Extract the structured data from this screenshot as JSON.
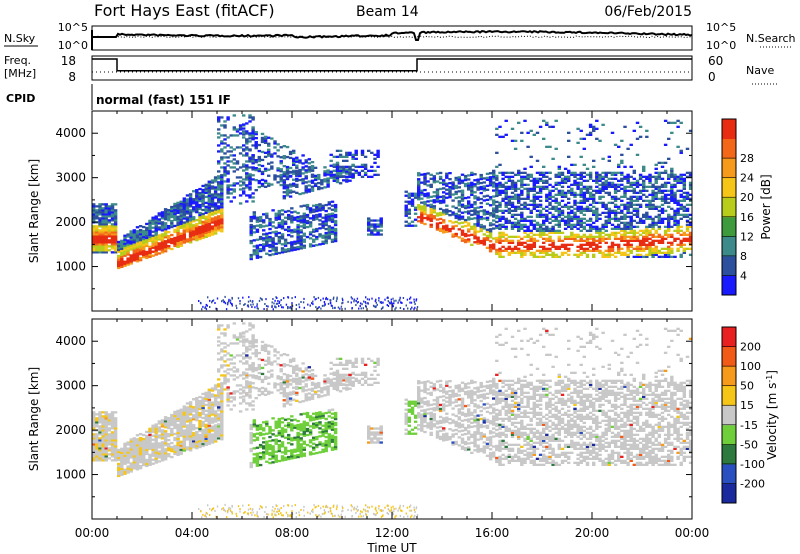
{
  "header": {
    "title": "Fort Hays East (fitACF)",
    "beam": "Beam 14",
    "date": "06/Feb/2015"
  },
  "noise_panel": {
    "left_label": "N.Sky",
    "left_ticks": [
      "10^5",
      "10^0"
    ],
    "right_ticks": [
      "10^5",
      "10^0"
    ],
    "right_label": "N.Search"
  },
  "freq_panel": {
    "left_label_1": "Freq.",
    "left_label_2": "[MHz]",
    "left_ticks": [
      "18",
      "8"
    ],
    "right_ticks": [
      "60",
      "0"
    ],
    "right_label": "Nave"
  },
  "cpid": {
    "label": "CPID",
    "value": "normal (fast) 151 IF"
  },
  "chart_data": [
    {
      "type": "heatmap",
      "name_hint": "power",
      "ylabel": "Slant Range [km]",
      "ylim": [
        0,
        4500
      ],
      "yticks": [
        "1000",
        "2000",
        "3000",
        "4000"
      ],
      "colorbar_label": "Power [dB]",
      "colorbar_ticks": [
        "4",
        "8",
        "12",
        "16",
        "20",
        "24",
        "28"
      ],
      "colorbar_range": [
        0,
        32
      ],
      "colors": [
        "#1a1aff",
        "#2c4f9e",
        "#3d8a8a",
        "#3d9a3d",
        "#b8cc1a",
        "#f5c518",
        "#f59a1a",
        "#f26818",
        "#e82c12"
      ]
    },
    {
      "type": "heatmap",
      "name_hint": "velocity",
      "ylabel": "Slant Range [km]",
      "ylim": [
        0,
        4500
      ],
      "yticks": [
        "1000",
        "2000",
        "3000",
        "4000"
      ],
      "colorbar_label": "Velocity [m s^-1]",
      "colorbar_ticks": [
        "200",
        "100",
        "50",
        "15",
        "-15",
        "-50",
        "-100",
        "-200"
      ],
      "colors": [
        "#1a2a9e",
        "#2a4fc0",
        "#2e7a3e",
        "#6fcf3a",
        "#c8c8c8",
        "#f5c518",
        "#f59a1a",
        "#f25a18",
        "#e82020"
      ]
    }
  ],
  "x_axis": {
    "ticks": [
      "00:00",
      "04:00",
      "08:00",
      "12:00",
      "16:00",
      "20:00",
      "00:00"
    ],
    "label": "Time UT",
    "range_hours": [
      0,
      24
    ]
  },
  "freq_trace": [
    {
      "t": 0,
      "f": 18
    },
    {
      "t": 1.0,
      "f": 18
    },
    {
      "t": 1.0,
      "f": 11.5
    },
    {
      "t": 13.0,
      "f": 11.5
    },
    {
      "t": 13.0,
      "f": 18
    },
    {
      "t": 24,
      "f": 18
    }
  ]
}
